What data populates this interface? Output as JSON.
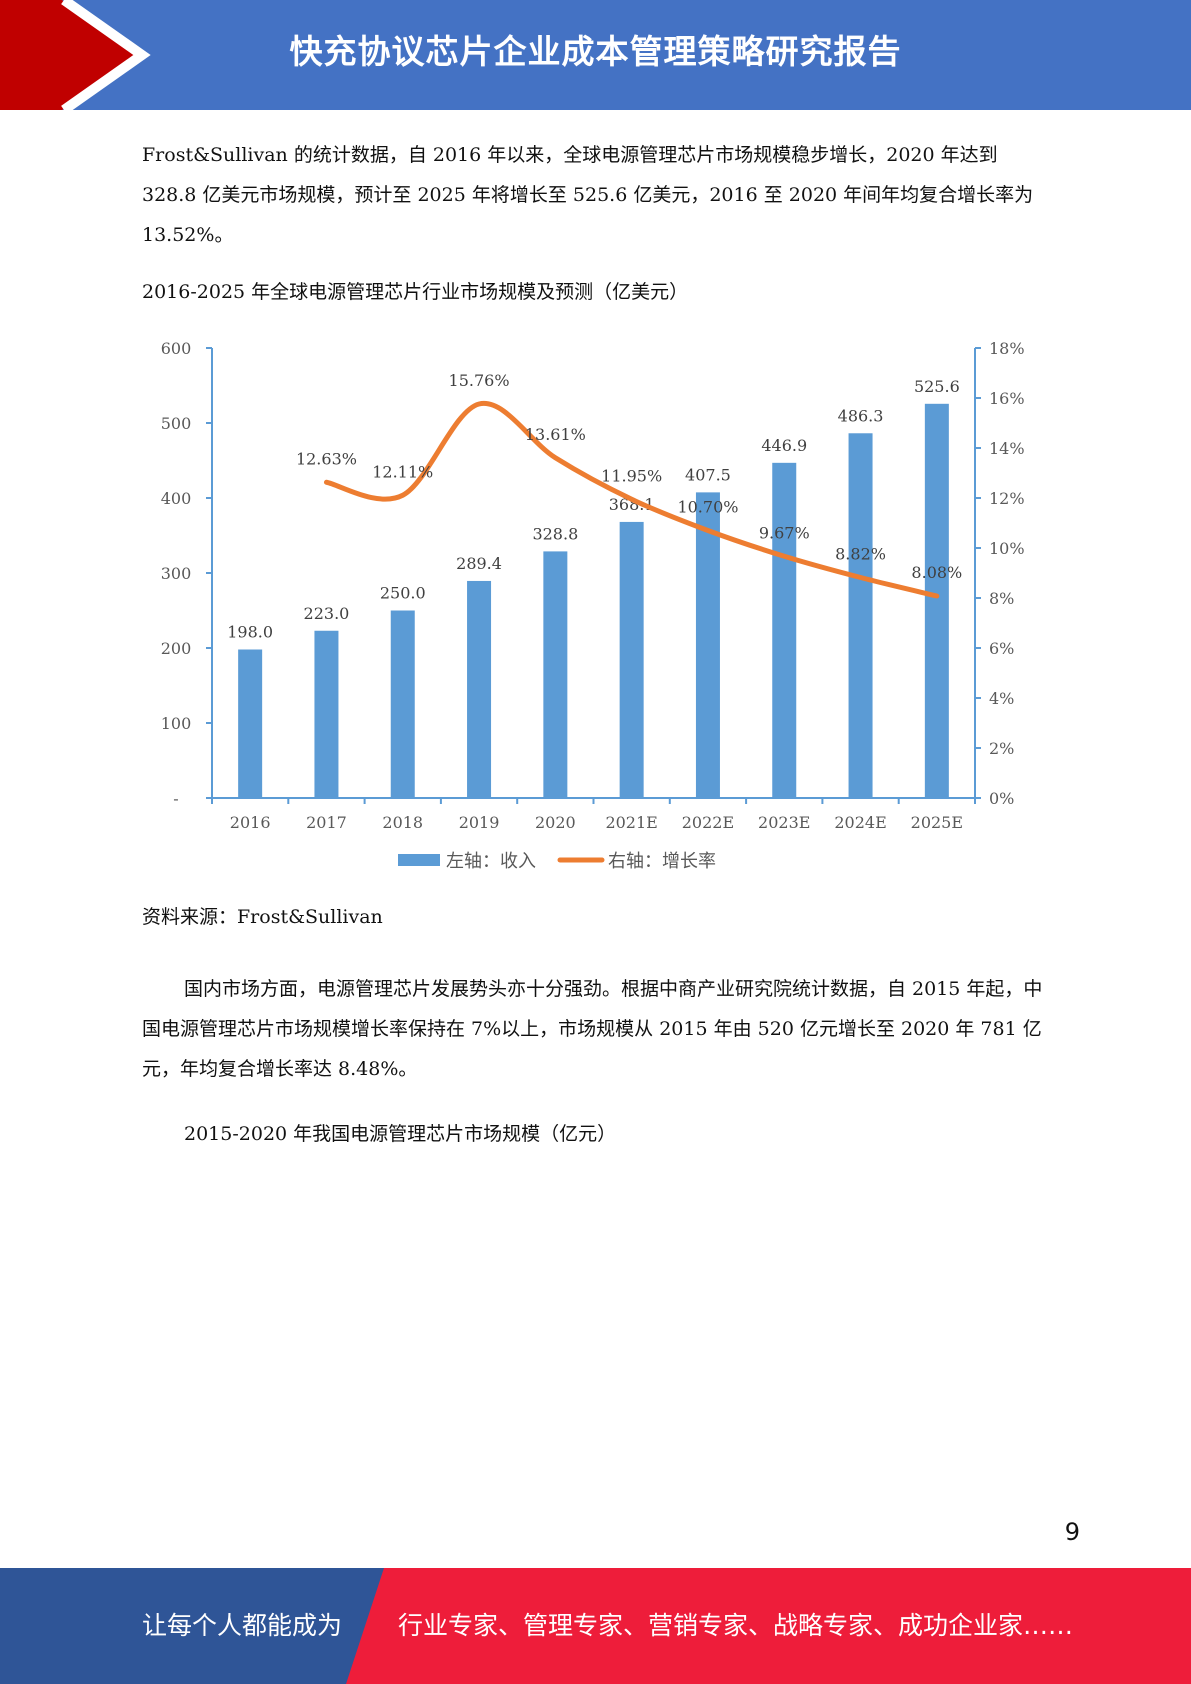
{
  "header": {
    "title": "快充协议芯片企业成本管理策略研究报告"
  },
  "paragraph1": "Frost&Sullivan 的统计数据，自 2016 年以来，全球电源管理芯片市场规模稳步增长，2020 年达到 328.8 亿美元市场规模，预计至 2025 年将增长至 525.6 亿美元，2016 至 2020 年间年均复合增长率为 13.52%。",
  "chart_caption": "2016-2025 年全球电源管理芯片行业市场规模及预测（亿美元）",
  "chart_data": {
    "type": "bar",
    "categories": [
      "2016",
      "2017",
      "2018",
      "2019",
      "2020",
      "2021E",
      "2022E",
      "2023E",
      "2024E",
      "2025E"
    ],
    "series": [
      {
        "name": "左轴：收入",
        "type": "bar",
        "axis": "left",
        "color": "#5b9bd5",
        "values": [
          198.0,
          223.0,
          250.0,
          289.4,
          328.8,
          368.1,
          407.5,
          446.9,
          486.3,
          525.6
        ],
        "labels": [
          "198.0",
          "223.0",
          "250.0",
          "289.4",
          "328.8",
          "368.1",
          "407.5",
          "446.9",
          "486.3",
          "525.6"
        ]
      },
      {
        "name": "右轴：增长率",
        "type": "line",
        "axis": "right",
        "color": "#ed7d31",
        "values": [
          null,
          12.63,
          12.11,
          15.76,
          13.61,
          11.95,
          10.7,
          9.67,
          8.82,
          8.08
        ],
        "labels": [
          "",
          "12.63%",
          "12.11%",
          "15.76%",
          "13.61%",
          "11.95%",
          "10.70%",
          "9.67%",
          "8.82%",
          "8.08%"
        ]
      }
    ],
    "left_axis": {
      "ylim": [
        0,
        600
      ],
      "ticks": [
        "-",
        "100",
        "200",
        "300",
        "400",
        "500",
        "600"
      ]
    },
    "right_axis": {
      "ylim": [
        0,
        18
      ],
      "ticks": [
        "0%",
        "2%",
        "4%",
        "6%",
        "8%",
        "10%",
        "12%",
        "14%",
        "16%",
        "18%"
      ]
    },
    "legend_position": "bottom",
    "grid": false
  },
  "source": "资料来源：Frost&Sullivan",
  "paragraph2": "国内市场方面，电源管理芯片发展势头亦十分强劲。根据中商产业研究院统计数据，自 2015 年起，中国电源管理芯片市场规模增长率保持在 7%以上，市场规模从 2015 年由 520 亿元增长至 2020 年 781 亿元，年均复合增长率达 8.48%。",
  "caption2": "2015-2020 年我国电源管理芯片市场规模（亿元）",
  "page_number": "9",
  "footer": {
    "left": "让每个人都能成为",
    "right": "行业专家、管理专家、营销专家、战略专家、成功企业家……"
  },
  "colors": {
    "header_blue": "#4472c4",
    "header_red": "#c00000",
    "footer_blue": "#2f5597",
    "footer_red": "#ee1d3a"
  }
}
